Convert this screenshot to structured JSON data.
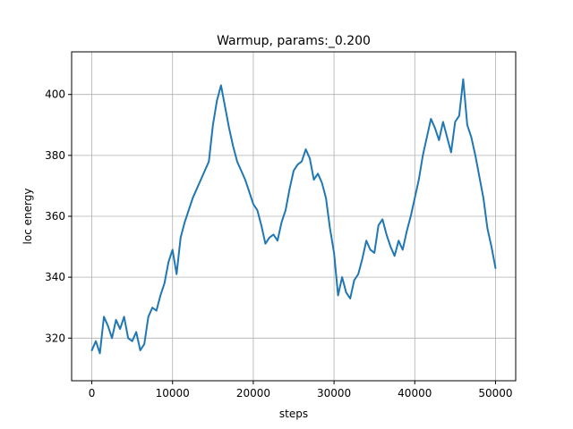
{
  "chart_data": {
    "type": "line",
    "title": "Warmup, params:_0.200",
    "xlabel": "steps",
    "ylabel": "loc energy",
    "xlim": [
      -2500,
      52500
    ],
    "ylim": [
      306,
      414
    ],
    "xticks": [
      0,
      10000,
      20000,
      30000,
      40000,
      50000
    ],
    "yticks": [
      320,
      340,
      360,
      380,
      400
    ],
    "grid": true,
    "series": [
      {
        "color": "#1f77b4",
        "x": [
          0,
          500,
          1000,
          1500,
          2000,
          2500,
          3000,
          3500,
          4000,
          4500,
          5000,
          5500,
          6000,
          6500,
          7000,
          7500,
          8000,
          8500,
          9000,
          9500,
          10000,
          10500,
          11000,
          11500,
          12000,
          12500,
          13000,
          13500,
          14000,
          14500,
          15000,
          15500,
          16000,
          16500,
          17000,
          17500,
          18000,
          18500,
          19000,
          19500,
          20000,
          20500,
          21000,
          21500,
          22000,
          22500,
          23000,
          23500,
          24000,
          24500,
          25000,
          25500,
          26000,
          26500,
          27000,
          27500,
          28000,
          28500,
          29000,
          29500,
          30000,
          30500,
          31000,
          31500,
          32000,
          32500,
          33000,
          33500,
          34000,
          34500,
          35000,
          35500,
          36000,
          36500,
          37000,
          37500,
          38000,
          38500,
          39000,
          39500,
          40000,
          40500,
          41000,
          41500,
          42000,
          42500,
          43000,
          43500,
          44000,
          44500,
          45000,
          45500,
          46000,
          46500,
          47000,
          47500,
          48000,
          48500,
          49000,
          49500,
          50000
        ],
        "values": [
          316,
          319,
          315,
          327,
          324,
          320,
          326,
          323,
          327,
          320,
          319,
          322,
          316,
          318,
          327,
          330,
          329,
          334,
          338,
          345,
          349,
          341,
          353,
          358,
          362,
          366,
          369,
          372,
          375,
          378,
          390,
          398,
          403,
          396,
          389,
          383,
          378,
          375,
          372,
          368,
          364,
          362,
          357,
          351,
          353,
          354,
          352,
          358,
          362,
          369,
          375,
          377,
          378,
          382,
          379,
          372,
          374,
          371,
          366,
          356,
          348,
          334,
          340,
          335,
          333,
          339,
          341,
          346,
          352,
          349,
          348,
          357,
          359,
          354,
          350,
          347,
          352,
          349,
          355,
          360,
          366,
          372,
          380,
          386,
          392,
          389,
          385,
          391,
          386,
          381,
          391,
          393,
          405,
          390,
          386,
          380,
          373,
          366,
          356,
          350,
          343
        ]
      }
    ]
  }
}
